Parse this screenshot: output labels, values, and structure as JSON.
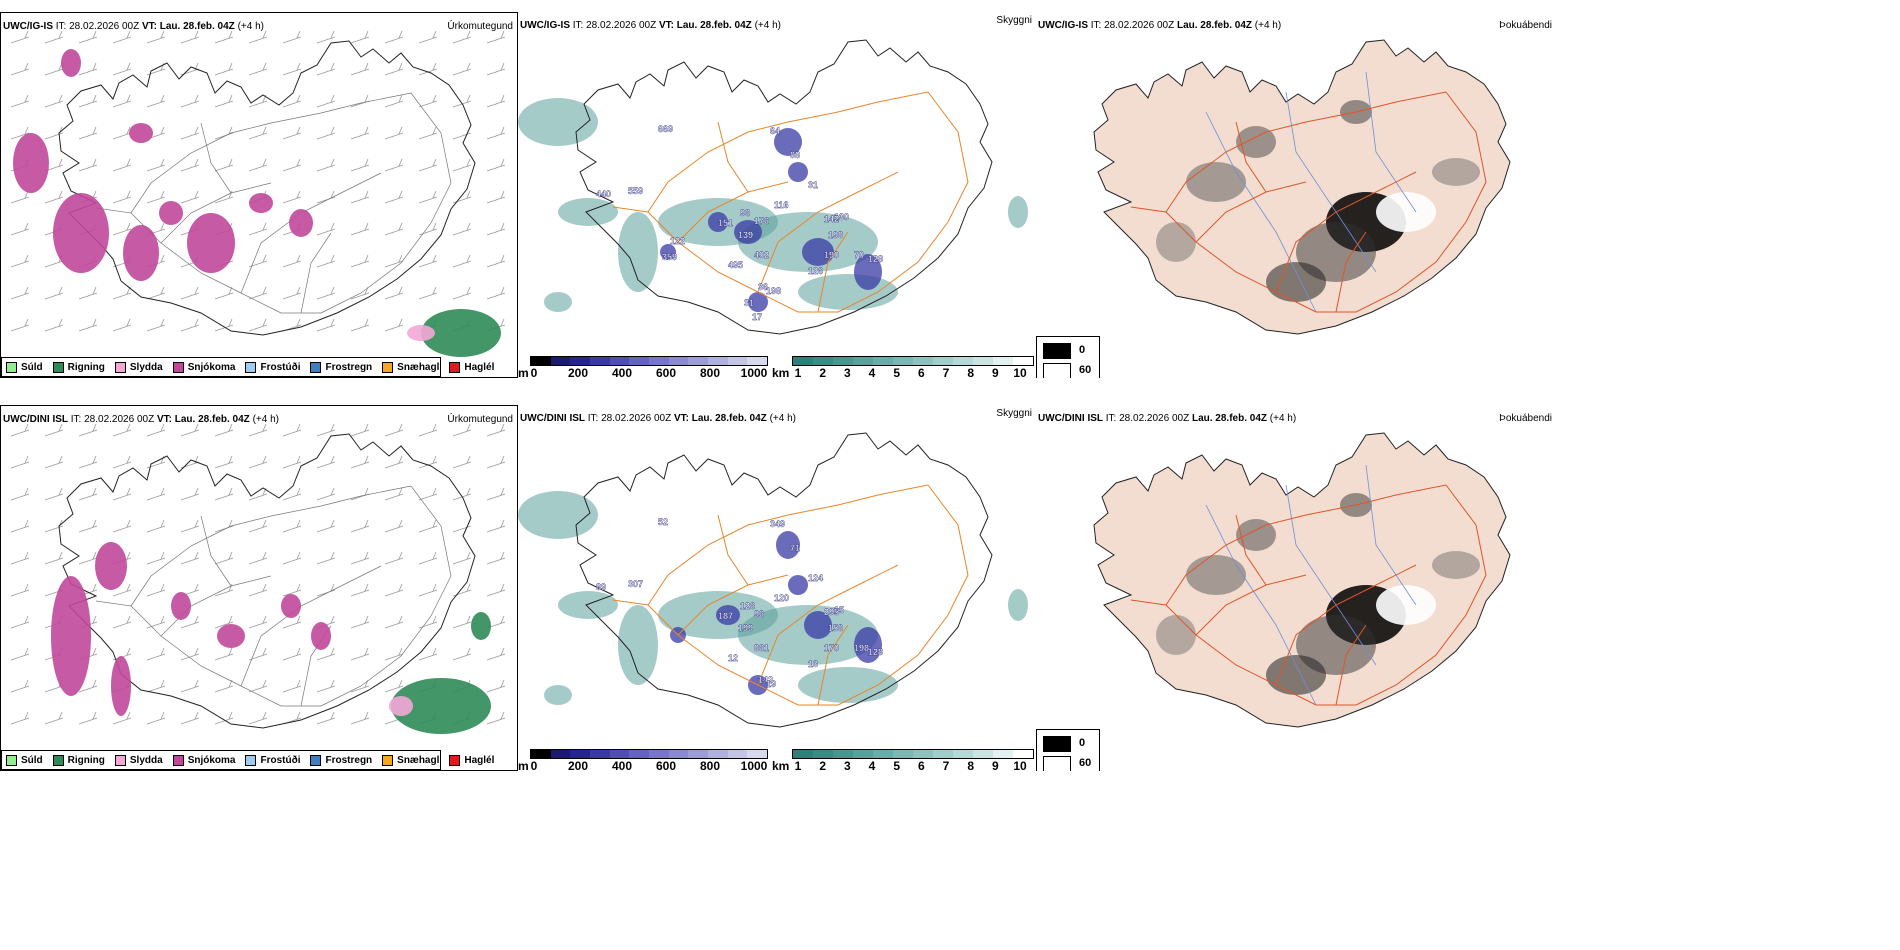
{
  "rows": [
    {
      "model": "UWC/IG-IS",
      "it_label": "IT:",
      "it_value": "28.02.2026 00Z",
      "vt_label": "VT:",
      "vt_value": "Lau. 28.feb. 04Z",
      "lead": "(+4 h)",
      "precip_title": "Úrkomutegund",
      "vis_title": "Skyggni",
      "fog_title": "Þokuábendi",
      "ceiling_labels": [
        "669",
        "440",
        "559",
        "64",
        "88",
        "31",
        "116",
        "96",
        "151",
        "176",
        "130",
        "139",
        "142",
        "198",
        "402",
        "190",
        "70",
        "128",
        "495",
        "126",
        "36",
        "198",
        "31",
        "17",
        "359",
        "122"
      ],
      "vis_labels": []
    },
    {
      "model": "UWC/DINI ISL",
      "it_label": "IT:",
      "it_value": "28.02.2026 00Z",
      "vt_label": "VT:",
      "vt_value": "Lau. 28.feb. 04Z",
      "lead": "(+4 h)",
      "precip_title": "Úrkomutegund",
      "vis_title": "Skyggni",
      "fog_title": "Þokuábendi",
      "ceiling_labels": [
        "52",
        "89",
        "307",
        "349",
        "71",
        "124",
        "120",
        "126",
        "187",
        "96",
        "15",
        "199",
        "295",
        "156",
        "861",
        "170",
        "198",
        "128",
        "12",
        "13",
        "142",
        "19"
      ],
      "vis_labels": []
    }
  ],
  "precip_legend": [
    {
      "label": "Súld",
      "color": "#90ee90"
    },
    {
      "label": "Rigning",
      "color": "#2e8b57"
    },
    {
      "label": "Slydda",
      "color": "#f4a6d7"
    },
    {
      "label": "Snjókoma",
      "color": "#c0489a"
    },
    {
      "label": "Frostúði",
      "color": "#9ecbf0"
    },
    {
      "label": "Frostregn",
      "color": "#3f7fbf"
    },
    {
      "label": "Snæhagl",
      "color": "#f5a623"
    },
    {
      "label": "Haglél",
      "color": "#e31a1c"
    }
  ],
  "ceiling_scale": {
    "unit": "m",
    "ticks": [
      "0",
      "200",
      "400",
      "600",
      "800",
      "1000"
    ],
    "colors": [
      "#000000",
      "#1a1a6e",
      "#25258f",
      "#3a3aa6",
      "#4f4fb3",
      "#6464bd",
      "#7777c5",
      "#8a8acd",
      "#9d9dd5",
      "#b0b0de",
      "#c4c4e6",
      "#d8d8ef"
    ]
  },
  "visibility_scale": {
    "unit": "km",
    "ticks": [
      "1",
      "2",
      "3",
      "4",
      "5",
      "6",
      "7",
      "8",
      "9",
      "10"
    ],
    "colors": [
      "#2f7f7a",
      "#3d8a85",
      "#4c958f",
      "#5ba09a",
      "#6babaa",
      "#7cb7b3",
      "#8ec2bf",
      "#a1cdca",
      "#b5d9d6",
      "#cae4e2",
      "#e3f1f0",
      "#ffffff"
    ]
  },
  "fog_legend": [
    {
      "label": "0",
      "color": "#000000"
    },
    {
      "label": "60",
      "color": "#ffffff"
    }
  ],
  "colors": {
    "snow": "#c0489a",
    "rain": "#2e8b57",
    "sleet": "#f4a6d7",
    "vis_teal": "#5ba09a",
    "ceiling_blue": "#3a3aa6",
    "roads": "#e8862a",
    "fog_land": "#f2ddd0",
    "fog_roads": "#e0552a",
    "rivers": "#6f8fd8"
  }
}
